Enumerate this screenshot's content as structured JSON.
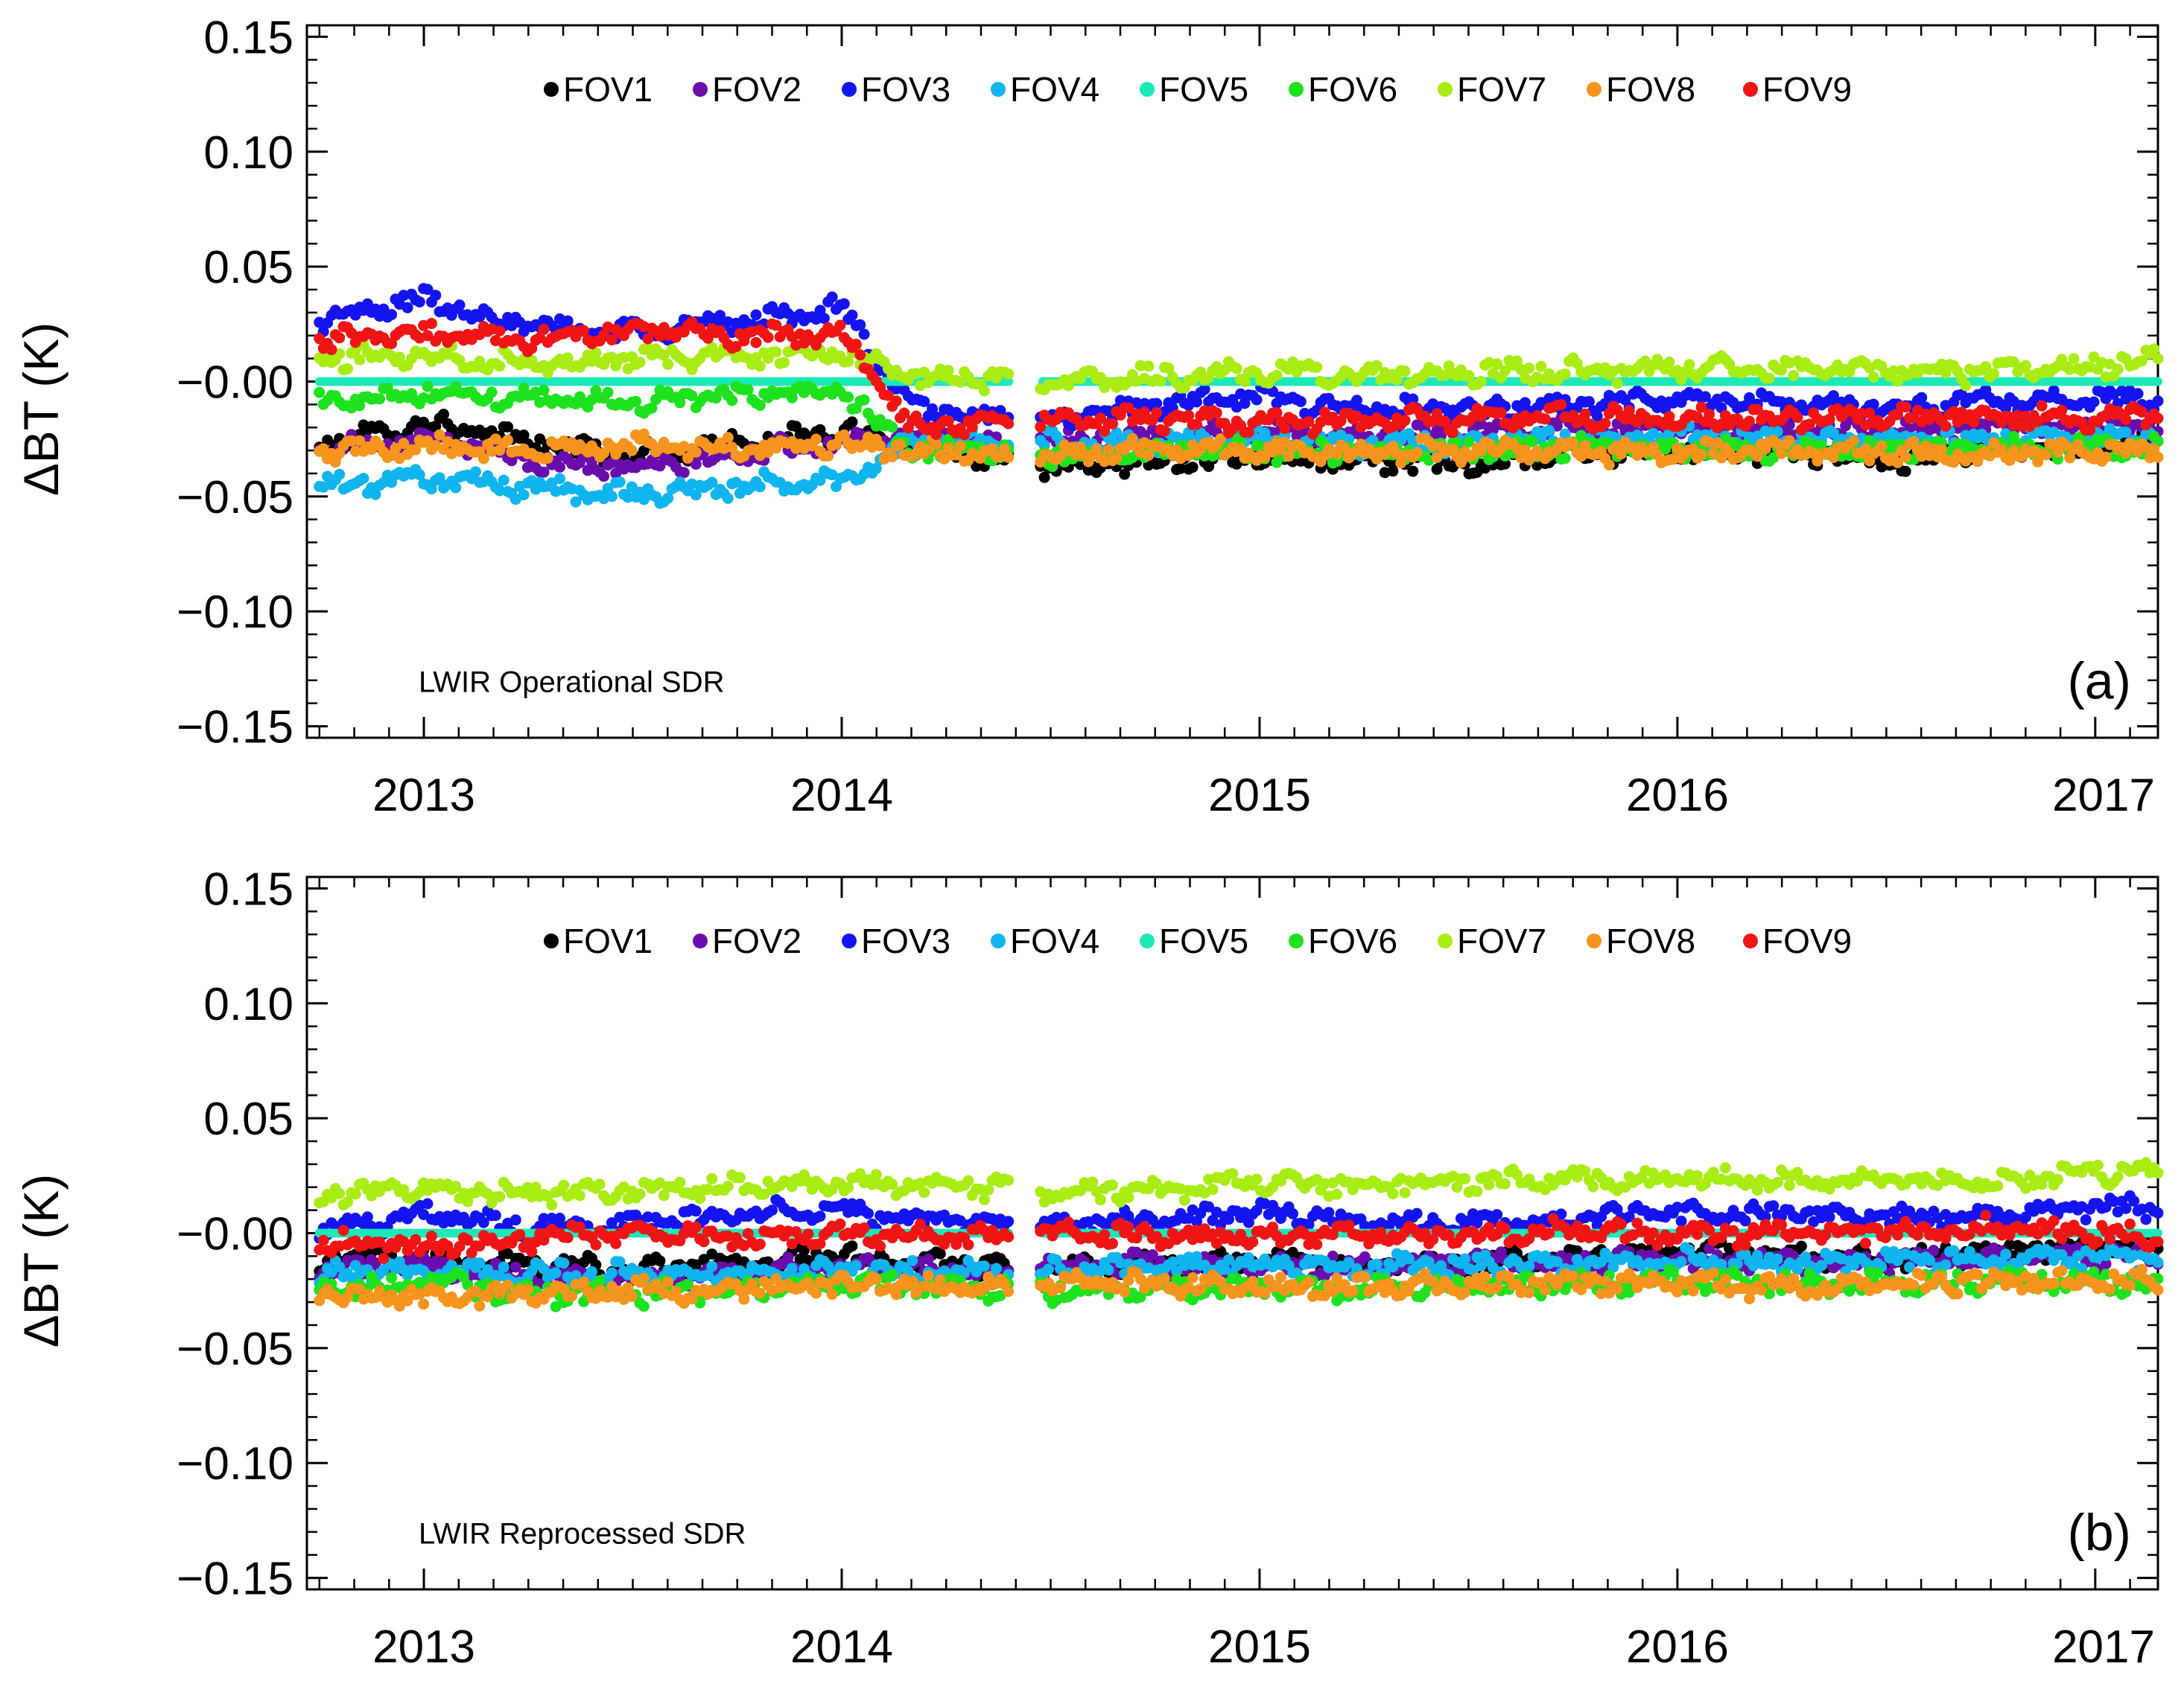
{
  "chart_data": [
    {
      "type": "scatter",
      "panel_label": "LWIR Operational SDR",
      "panel_tag": "(a)",
      "xlabel": "",
      "ylabel": "ΔBT (K)",
      "xlim": [
        2012.72,
        2017.15
      ],
      "ylim": [
        -0.155,
        0.155
      ],
      "yticks": [
        0.15,
        0.1,
        0.05,
        0.0,
        -0.05,
        -0.1,
        -0.15
      ],
      "ytick_labels": [
        "0.15",
        "0.10",
        "0.05",
        "−0.00",
        "−0.05",
        "−0.10",
        "−0.15"
      ],
      "xticks": [
        2013,
        2014,
        2015,
        2016,
        2017
      ],
      "xtick_labels": [
        "2013",
        "2014",
        "2015",
        "2016",
        "2017"
      ],
      "gap": [
        2014.4,
        2014.47
      ],
      "legend": "top",
      "series": [
        {
          "name": "FOV1",
          "color": "#000000",
          "x": [
            2012.75,
            2013.0,
            2013.25,
            2013.5,
            2013.75,
            2014.0,
            2014.17,
            2014.4,
            2014.5,
            2014.75,
            2015.0,
            2015.25,
            2015.5,
            2015.75,
            2016.0,
            2016.25,
            2016.5,
            2016.75,
            2017.0,
            2017.15
          ],
          "values": [
            -0.028,
            -0.018,
            -0.026,
            -0.032,
            -0.028,
            -0.022,
            -0.025,
            -0.035,
            -0.038,
            -0.034,
            -0.033,
            -0.034,
            -0.037,
            -0.031,
            -0.03,
            -0.031,
            -0.035,
            -0.03,
            -0.029,
            -0.026
          ]
        },
        {
          "name": "FOV2",
          "color": "#6a0dad",
          "x": [
            2012.75,
            2013.0,
            2013.25,
            2013.5,
            2013.75,
            2014.0,
            2014.17,
            2014.4,
            2014.5,
            2014.75,
            2015.0,
            2015.25,
            2015.5,
            2015.75,
            2016.0,
            2016.25,
            2016.5,
            2016.75,
            2017.0,
            2017.15
          ],
          "values": [
            -0.03,
            -0.024,
            -0.034,
            -0.038,
            -0.032,
            -0.026,
            -0.022,
            -0.028,
            -0.026,
            -0.025,
            -0.022,
            -0.024,
            -0.022,
            -0.02,
            -0.021,
            -0.022,
            -0.02,
            -0.02,
            -0.019,
            -0.02
          ]
        },
        {
          "name": "FOV3",
          "color": "#1414f0",
          "x": [
            2012.75,
            2013.0,
            2013.25,
            2013.5,
            2013.75,
            2014.0,
            2014.17,
            2014.4,
            2014.5,
            2014.75,
            2015.0,
            2015.25,
            2015.5,
            2015.75,
            2016.0,
            2016.25,
            2016.5,
            2016.75,
            2017.0,
            2017.15
          ],
          "values": [
            0.026,
            0.036,
            0.024,
            0.022,
            0.026,
            0.032,
            -0.012,
            -0.016,
            -0.018,
            -0.01,
            -0.007,
            -0.012,
            -0.013,
            -0.01,
            -0.008,
            -0.01,
            -0.011,
            -0.009,
            -0.007,
            -0.008
          ]
        },
        {
          "name": "FOV4",
          "color": "#10b4ee",
          "x": [
            2012.75,
            2013.0,
            2013.25,
            2013.5,
            2013.75,
            2014.0,
            2014.17,
            2014.4,
            2014.5,
            2014.75,
            2015.0,
            2015.25,
            2015.5,
            2015.75,
            2016.0,
            2016.25,
            2016.5,
            2016.75,
            2017.0,
            2017.15
          ],
          "values": [
            -0.046,
            -0.042,
            -0.046,
            -0.049,
            -0.046,
            -0.043,
            -0.026,
            -0.027,
            -0.027,
            -0.026,
            -0.025,
            -0.027,
            -0.026,
            -0.025,
            -0.024,
            -0.025,
            -0.026,
            -0.025,
            -0.024,
            -0.025
          ]
        },
        {
          "name": "FOV5",
          "color": "#1de8b8",
          "x": [
            2012.75,
            2013.5,
            2014.4,
            2014.5,
            2015.5,
            2016.5,
            2017.15
          ],
          "values": [
            0.0,
            0.0,
            0.0,
            0.0,
            0.0,
            0.0,
            0.0
          ]
        },
        {
          "name": "FOV6",
          "color": "#1ee21e",
          "x": [
            2012.75,
            2013.0,
            2013.25,
            2013.5,
            2013.75,
            2014.0,
            2014.17,
            2014.4,
            2014.5,
            2014.75,
            2015.0,
            2015.25,
            2015.5,
            2015.75,
            2016.0,
            2016.25,
            2016.5,
            2016.75,
            2017.0,
            2017.15
          ],
          "values": [
            -0.008,
            -0.005,
            -0.007,
            -0.009,
            -0.006,
            -0.004,
            -0.03,
            -0.031,
            -0.032,
            -0.031,
            -0.03,
            -0.031,
            -0.03,
            -0.029,
            -0.03,
            -0.03,
            -0.03,
            -0.029,
            -0.028,
            -0.029
          ]
        },
        {
          "name": "FOV7",
          "color": "#a8ec14",
          "x": [
            2012.75,
            2013.0,
            2013.25,
            2013.5,
            2013.75,
            2014.0,
            2014.17,
            2014.4,
            2014.5,
            2014.75,
            2015.0,
            2015.25,
            2015.5,
            2015.75,
            2016.0,
            2016.25,
            2016.5,
            2016.75,
            2017.0,
            2017.15
          ],
          "values": [
            0.01,
            0.012,
            0.008,
            0.01,
            0.011,
            0.012,
            0.002,
            0.001,
            0.001,
            0.002,
            0.004,
            0.003,
            0.004,
            0.005,
            0.006,
            0.005,
            0.005,
            0.004,
            0.007,
            0.009
          ]
        },
        {
          "name": "FOV8",
          "color": "#f7941d",
          "x": [
            2012.75,
            2013.0,
            2013.25,
            2013.5,
            2013.75,
            2014.0,
            2014.17,
            2014.4,
            2014.5,
            2014.75,
            2015.0,
            2015.25,
            2015.5,
            2015.75,
            2016.0,
            2016.25,
            2016.5,
            2016.75,
            2017.0,
            2017.15
          ],
          "values": [
            -0.031,
            -0.028,
            -0.03,
            -0.028,
            -0.029,
            -0.027,
            -0.03,
            -0.031,
            -0.032,
            -0.03,
            -0.03,
            -0.031,
            -0.03,
            -0.03,
            -0.031,
            -0.03,
            -0.031,
            -0.032,
            -0.03,
            -0.031
          ]
        },
        {
          "name": "FOV9",
          "color": "#f01414",
          "x": [
            2012.75,
            2013.0,
            2013.25,
            2013.5,
            2013.75,
            2014.0,
            2014.17,
            2014.4,
            2014.5,
            2014.75,
            2015.0,
            2015.25,
            2015.5,
            2015.75,
            2016.0,
            2016.25,
            2016.5,
            2016.75,
            2017.0,
            2017.15
          ],
          "values": [
            0.018,
            0.02,
            0.018,
            0.022,
            0.02,
            0.02,
            -0.02,
            -0.018,
            -0.017,
            -0.016,
            -0.018,
            -0.017,
            -0.016,
            -0.015,
            -0.017,
            -0.016,
            -0.015,
            -0.015,
            -0.016,
            -0.015
          ]
        }
      ]
    },
    {
      "type": "scatter",
      "panel_label": "LWIR Reprocessed SDR",
      "panel_tag": "(b)",
      "xlabel": "",
      "ylabel": "ΔBT (K)",
      "xlim": [
        2012.72,
        2017.15
      ],
      "ylim": [
        -0.155,
        0.155
      ],
      "yticks": [
        0.15,
        0.1,
        0.05,
        0.0,
        -0.05,
        -0.1,
        -0.15
      ],
      "ytick_labels": [
        "0.15",
        "0.10",
        "0.05",
        "−0.00",
        "−0.05",
        "−0.10",
        "−0.15"
      ],
      "xticks": [
        2013,
        2014,
        2015,
        2016,
        2017
      ],
      "xtick_labels": [
        "2013",
        "2014",
        "2015",
        "2016",
        "2017"
      ],
      "gap": [
        2014.4,
        2014.47
      ],
      "legend": "top",
      "series": [
        {
          "name": "FOV1",
          "color": "#000000",
          "x": [
            2012.75,
            2013.0,
            2013.25,
            2013.5,
            2013.75,
            2014.0,
            2014.17,
            2014.4,
            2014.5,
            2014.75,
            2015.0,
            2015.25,
            2015.5,
            2015.75,
            2016.0,
            2016.25,
            2016.5,
            2016.75,
            2017.0,
            2017.15
          ],
          "values": [
            -0.012,
            -0.01,
            -0.014,
            -0.016,
            -0.012,
            -0.01,
            -0.013,
            -0.014,
            -0.016,
            -0.014,
            -0.012,
            -0.013,
            -0.014,
            -0.01,
            -0.008,
            -0.01,
            -0.012,
            -0.008,
            -0.005,
            -0.006
          ]
        },
        {
          "name": "FOV2",
          "color": "#6a0dad",
          "x": [
            2012.75,
            2013.0,
            2013.25,
            2013.5,
            2013.75,
            2014.0,
            2014.17,
            2014.4,
            2014.5,
            2014.75,
            2015.0,
            2015.25,
            2015.5,
            2015.75,
            2016.0,
            2016.25,
            2016.5,
            2016.75,
            2017.0,
            2017.15
          ],
          "values": [
            -0.016,
            -0.014,
            -0.018,
            -0.02,
            -0.017,
            -0.015,
            -0.016,
            -0.017,
            -0.014,
            -0.013,
            -0.015,
            -0.014,
            -0.013,
            -0.012,
            -0.012,
            -0.013,
            -0.012,
            -0.011,
            -0.01,
            -0.011
          ]
        },
        {
          "name": "FOV3",
          "color": "#1414f0",
          "x": [
            2012.75,
            2013.0,
            2013.25,
            2013.5,
            2013.75,
            2014.0,
            2014.17,
            2014.4,
            2014.5,
            2014.75,
            2015.0,
            2015.25,
            2015.5,
            2015.75,
            2016.0,
            2016.25,
            2016.5,
            2016.75,
            2017.0,
            2017.15
          ],
          "values": [
            0.002,
            0.008,
            0.002,
            0.004,
            0.008,
            0.01,
            0.006,
            0.004,
            0.003,
            0.006,
            0.009,
            0.005,
            0.004,
            0.006,
            0.009,
            0.008,
            0.007,
            0.008,
            0.012,
            0.01
          ]
        },
        {
          "name": "FOV4",
          "color": "#10b4ee",
          "x": [
            2012.75,
            2013.0,
            2013.25,
            2013.5,
            2013.75,
            2014.0,
            2014.17,
            2014.4,
            2014.5,
            2014.75,
            2015.0,
            2015.25,
            2015.5,
            2015.75,
            2016.0,
            2016.25,
            2016.5,
            2016.75,
            2017.0,
            2017.15
          ],
          "values": [
            -0.018,
            -0.016,
            -0.017,
            -0.018,
            -0.017,
            -0.016,
            -0.017,
            -0.018,
            -0.016,
            -0.015,
            -0.014,
            -0.015,
            -0.014,
            -0.013,
            -0.012,
            -0.013,
            -0.012,
            -0.011,
            -0.01,
            -0.011
          ]
        },
        {
          "name": "FOV5",
          "color": "#1de8b8",
          "x": [
            2012.75,
            2013.5,
            2014.4,
            2014.5,
            2015.5,
            2016.5,
            2017.15
          ],
          "values": [
            0.0,
            0.0,
            0.0,
            0.0,
            0.0,
            0.0,
            0.0
          ]
        },
        {
          "name": "FOV6",
          "color": "#1ee21e",
          "x": [
            2012.75,
            2013.0,
            2013.25,
            2013.5,
            2013.75,
            2014.0,
            2014.17,
            2014.4,
            2014.5,
            2014.75,
            2015.0,
            2015.25,
            2015.5,
            2015.75,
            2016.0,
            2016.25,
            2016.5,
            2016.75,
            2017.0,
            2017.15
          ],
          "values": [
            -0.024,
            -0.022,
            -0.026,
            -0.027,
            -0.024,
            -0.022,
            -0.023,
            -0.024,
            -0.025,
            -0.024,
            -0.023,
            -0.024,
            -0.023,
            -0.022,
            -0.021,
            -0.022,
            -0.022,
            -0.021,
            -0.021,
            -0.022
          ]
        },
        {
          "name": "FOV7",
          "color": "#a8ec14",
          "x": [
            2012.75,
            2013.0,
            2013.25,
            2013.5,
            2013.75,
            2014.0,
            2014.17,
            2014.4,
            2014.5,
            2014.75,
            2015.0,
            2015.25,
            2015.5,
            2015.75,
            2016.0,
            2016.25,
            2016.5,
            2016.75,
            2017.0,
            2017.15
          ],
          "values": [
            0.017,
            0.019,
            0.017,
            0.018,
            0.02,
            0.022,
            0.021,
            0.02,
            0.018,
            0.019,
            0.022,
            0.021,
            0.022,
            0.023,
            0.024,
            0.023,
            0.023,
            0.022,
            0.027,
            0.026
          ]
        },
        {
          "name": "FOV8",
          "color": "#f7941d",
          "x": [
            2012.75,
            2013.0,
            2013.25,
            2013.5,
            2013.75,
            2014.0,
            2014.17,
            2014.4,
            2014.5,
            2014.75,
            2015.0,
            2015.25,
            2015.5,
            2015.75,
            2016.0,
            2016.25,
            2016.5,
            2016.75,
            2017.0,
            2017.15
          ],
          "values": [
            -0.026,
            -0.028,
            -0.026,
            -0.025,
            -0.024,
            -0.022,
            -0.023,
            -0.024,
            -0.023,
            -0.022,
            -0.023,
            -0.024,
            -0.022,
            -0.021,
            -0.022,
            -0.023,
            -0.022,
            -0.021,
            -0.021,
            -0.022
          ]
        },
        {
          "name": "FOV9",
          "color": "#f01414",
          "x": [
            2012.75,
            2013.0,
            2013.25,
            2013.5,
            2013.75,
            2014.0,
            2014.17,
            2014.4,
            2014.5,
            2014.75,
            2015.0,
            2015.25,
            2015.5,
            2015.75,
            2016.0,
            2016.25,
            2016.5,
            2016.75,
            2017.0,
            2017.15
          ],
          "values": [
            -0.004,
            -0.006,
            -0.002,
            0.0,
            -0.002,
            -0.001,
            -0.002,
            -0.002,
            0.0,
            -0.001,
            -0.002,
            0.0,
            -0.002,
            0.001,
            -0.001,
            0.0,
            0.0,
            0.002,
            0.0,
            -0.002
          ]
        }
      ]
    }
  ]
}
